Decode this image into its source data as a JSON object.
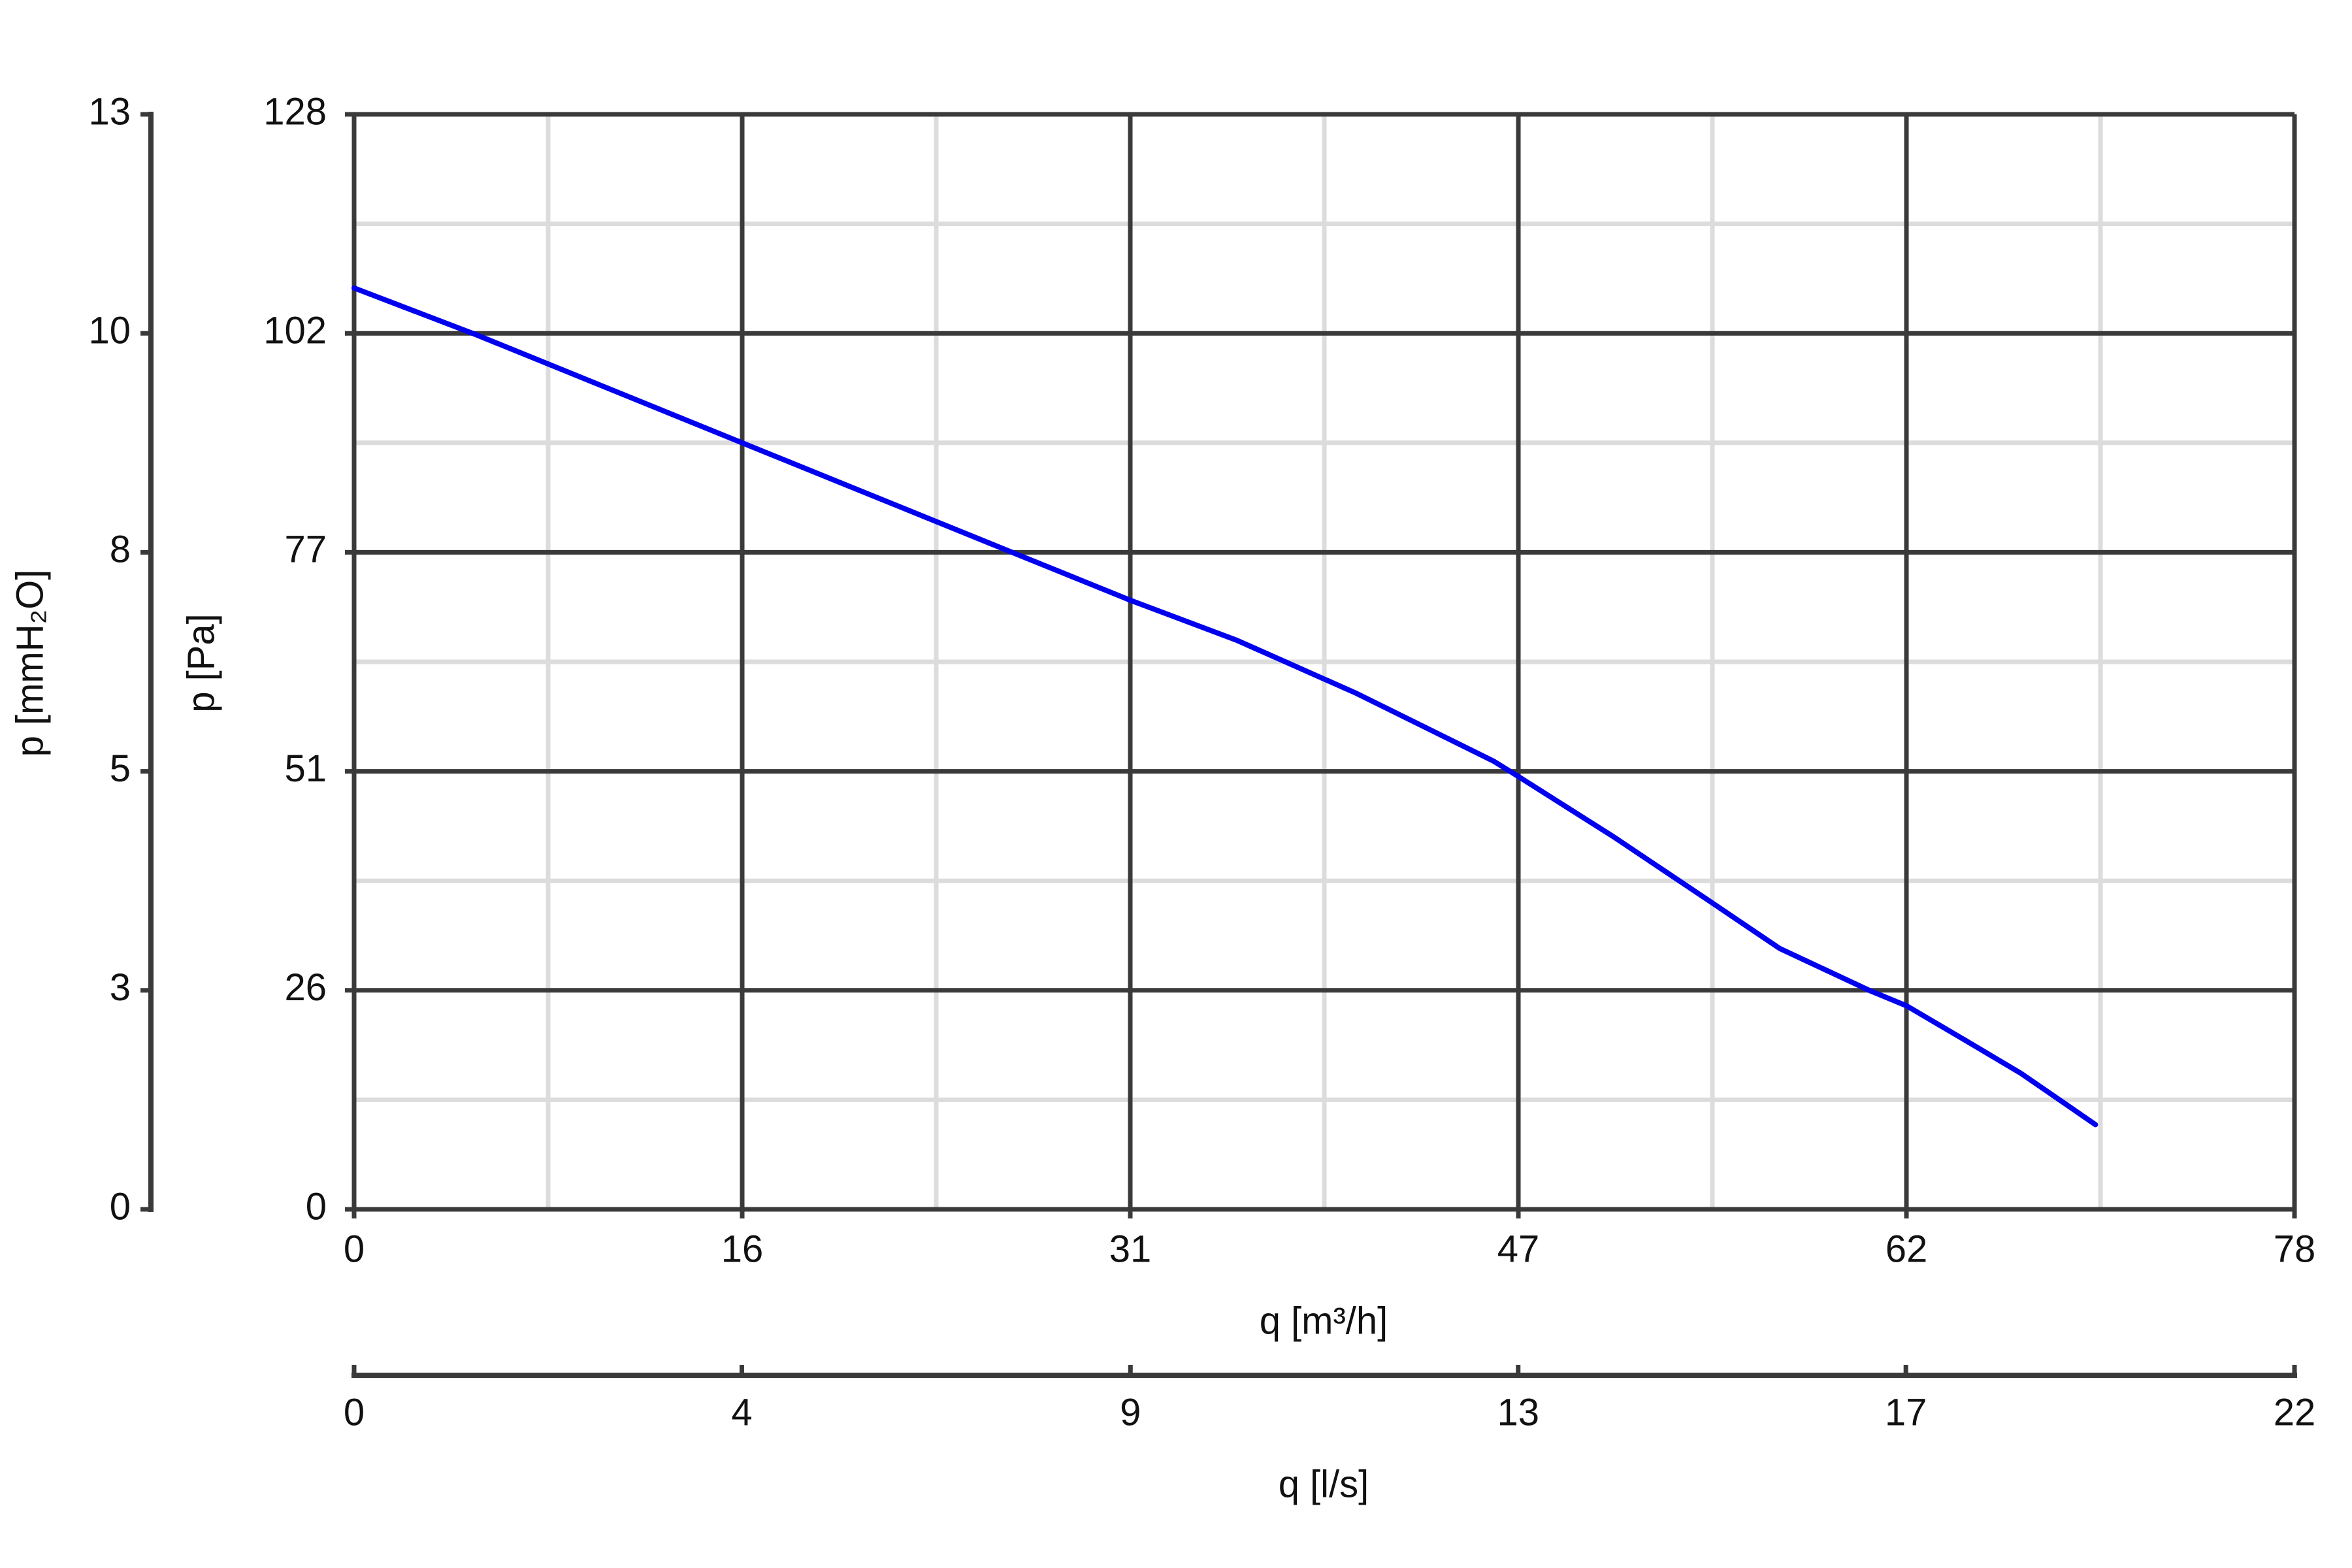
{
  "chart_data": {
    "type": "line",
    "x": [
      0,
      4.85,
      15.6,
      26.7,
      31.2,
      35.5,
      40.3,
      45.8,
      46.8,
      50.6,
      54.5,
      57.3,
      60.9,
      62.4,
      64.8,
      67.0,
      70.0
    ],
    "values": [
      107.7,
      102.3,
      89.6,
      76.5,
      71.2,
      66.5,
      60.3,
      52.4,
      50.6,
      43.6,
      36.0,
      30.5,
      25.6,
      23.8,
      19.7,
      15.9,
      9.9
    ],
    "color": "#0000ee",
    "xlabel": "q [m³/h]",
    "ylabel": "p [Pa]",
    "x2label": "q [l/s]",
    "y2label": "p [mmH₂O]",
    "xlim": [
      0,
      78
    ],
    "xticks": [
      0,
      {
        "value": 15.6,
        "label": "16"
      },
      {
        "value": 31.2,
        "label": "31"
      },
      {
        "value": 46.8,
        "label": "47"
      },
      {
        "value": 62.4,
        "label": "62"
      },
      78
    ],
    "ylim": [
      0,
      128
    ],
    "yticks": [
      0,
      {
        "value": 25.6,
        "label": "26"
      },
      {
        "value": 51.2,
        "label": "51"
      },
      {
        "value": 76.8,
        "label": "77"
      },
      {
        "value": 102.4,
        "label": "102"
      },
      128
    ],
    "x2lim": [
      0,
      21.67
    ],
    "x2ticks": [
      0,
      {
        "value": 4.33,
        "label": "4"
      },
      {
        "value": 8.67,
        "label": "9"
      },
      13,
      {
        "value": 17.33,
        "label": "17"
      },
      {
        "value": 21.67,
        "label": "22"
      }
    ],
    "y2lim": [
      0,
      13.05
    ],
    "y2ticks": [
      0,
      {
        "value": 2.61,
        "label": "3"
      },
      {
        "value": 5.22,
        "label": "5"
      },
      {
        "value": 7.83,
        "label": "8"
      },
      {
        "value": 10.44,
        "label": "10"
      },
      {
        "value": 13.05,
        "label": "13"
      }
    ],
    "grid": true,
    "minor_grid": true
  }
}
